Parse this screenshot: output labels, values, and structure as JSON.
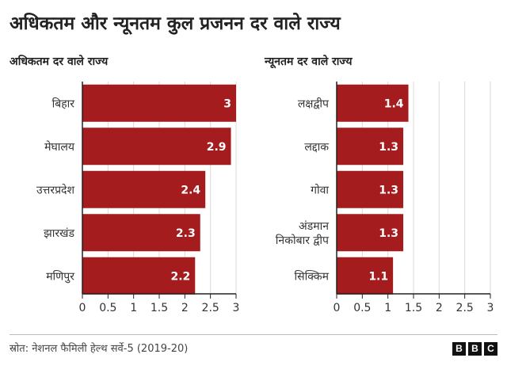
{
  "title": "अधिकतम और न्यूनतम कुल प्रजनन दर वाले राज्य",
  "source": "स्रोत: नेशनल फैमिली हेल्थ सर्वे-5 (2019-20)",
  "logo": [
    "B",
    "B",
    "C"
  ],
  "colors": {
    "bar": "#a51c1e",
    "axis": "#222222",
    "grid": "#d9d9d9",
    "label": "#ffffff"
  },
  "chart_data": [
    {
      "type": "bar",
      "orientation": "horizontal",
      "subtitle": "अधिकतम दर वाले राज्य",
      "categories": [
        "बिहार",
        "मेघालय",
        "उत्तरप्रदेश",
        "झारखंड",
        "मणिपुर"
      ],
      "values": [
        3,
        2.9,
        2.4,
        2.3,
        2.2
      ],
      "value_labels": [
        "3",
        "2.9",
        "2.4",
        "2.3",
        "2.2"
      ],
      "xlim": [
        0,
        3
      ],
      "xticks": [
        "0",
        "0.5",
        "1",
        "1.5",
        "2",
        "2.5",
        "3"
      ],
      "grid": true
    },
    {
      "type": "bar",
      "orientation": "horizontal",
      "subtitle": "न्यूनतम दर वाले राज्य",
      "categories": [
        "लक्षद्वीप",
        "लद्दाक",
        "गोवा",
        "अंडमान निकोबार द्वीप",
        "सिक्किम"
      ],
      "category_lines": [
        [
          "लक्षद्वीप"
        ],
        [
          "लद्दाक"
        ],
        [
          "गोवा"
        ],
        [
          "अंडमान",
          "निकोबार द्वीप"
        ],
        [
          "सिक्किम"
        ]
      ],
      "values": [
        1.4,
        1.3,
        1.3,
        1.3,
        1.1
      ],
      "value_labels": [
        "1.4",
        "1.3",
        "1.3",
        "1.3",
        "1.1"
      ],
      "xlim": [
        0,
        3
      ],
      "xticks": [
        "0",
        "0.5",
        "1",
        "1.5",
        "2",
        "2.5",
        "3"
      ],
      "grid": true
    }
  ]
}
